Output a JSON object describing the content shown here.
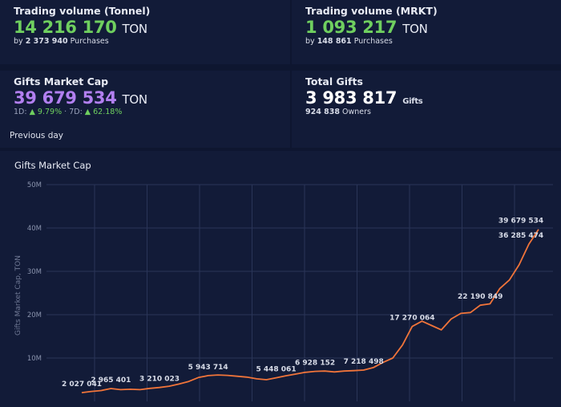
{
  "cards": [
    {
      "title": "Trading volume (Tonnel)",
      "value": "14 216 170",
      "unit": "TON",
      "sub_prefix": "by",
      "sub_value": "2 373 940",
      "sub_suffix": "Purchases"
    },
    {
      "title": "Trading volume (MRKT)",
      "value": "1 093 217",
      "unit": "TON",
      "sub_prefix": "by",
      "sub_value": "148 861",
      "sub_suffix": "Purchases"
    },
    {
      "title": "Gifts Market Cap",
      "value": "39 679 534",
      "unit": "TON",
      "change": [
        "1D:",
        "▲ 9.79%",
        "·",
        "7D:",
        "▲ 62.18%"
      ]
    },
    {
      "title": "Total Gifts",
      "value": "3 983 817",
      "unit": "Gifts",
      "sub_value": "924 838",
      "sub_suffix": "Owners"
    }
  ],
  "previous_day": "Previous day",
  "chart_data": {
    "type": "line",
    "title": "Gifts Market Cap",
    "y_label": "Gifts Market Cap, TON",
    "color": "#f0743a",
    "grid": true,
    "categories": [
      null,
      null,
      null,
      null,
      null,
      null,
      null,
      null,
      null,
      null,
      null,
      null,
      null,
      null,
      null,
      null,
      null,
      null,
      null,
      null,
      null,
      null,
      null,
      null,
      null,
      null,
      null,
      null,
      null,
      null,
      null,
      null,
      null,
      null,
      null,
      null,
      null,
      null,
      null,
      null,
      null,
      null,
      null,
      null,
      null,
      null,
      null,
      null
    ],
    "values": [
      2027041,
      2300000,
      2500000,
      2965401,
      2700000,
      2800000,
      2700000,
      3000000,
      3210023,
      3500000,
      4000000,
      4600000,
      5500000,
      5943714,
      6100000,
      6000000,
      5800000,
      5600000,
      5200000,
      5000000,
      5448061,
      5900000,
      6300000,
      6700000,
      6928152,
      7000000,
      6800000,
      7000000,
      7100000,
      7218498,
      7800000,
      9000000,
      10000000,
      13000000,
      17270064,
      18500000,
      17500000,
      16500000,
      19000000,
      20300000,
      20500000,
      22190849,
      22500000,
      26000000,
      28000000,
      31500000,
      36285474,
      39679534
    ],
    "value_labels": [
      "2 027 041",
      null,
      null,
      "2 965 401",
      null,
      null,
      null,
      null,
      "3 210 023",
      null,
      null,
      null,
      null,
      "5 943 714",
      null,
      null,
      null,
      null,
      null,
      null,
      "5 448 061",
      null,
      null,
      null,
      "6 928 152",
      null,
      null,
      null,
      null,
      "7 218 498",
      null,
      null,
      null,
      null,
      "17 270 064",
      null,
      null,
      null,
      null,
      null,
      null,
      "22 190 849",
      null,
      null,
      null,
      null,
      "36 285 474",
      "39 679 534"
    ],
    "ylim": [
      0,
      50000000
    ],
    "yticks": [
      {
        "value": 10000000,
        "label": "10M"
      },
      {
        "value": 20000000,
        "label": "20M"
      },
      {
        "value": 30000000,
        "label": "30M"
      },
      {
        "value": 40000000,
        "label": "40M"
      },
      {
        "value": 50000000,
        "label": "50M"
      }
    ]
  }
}
